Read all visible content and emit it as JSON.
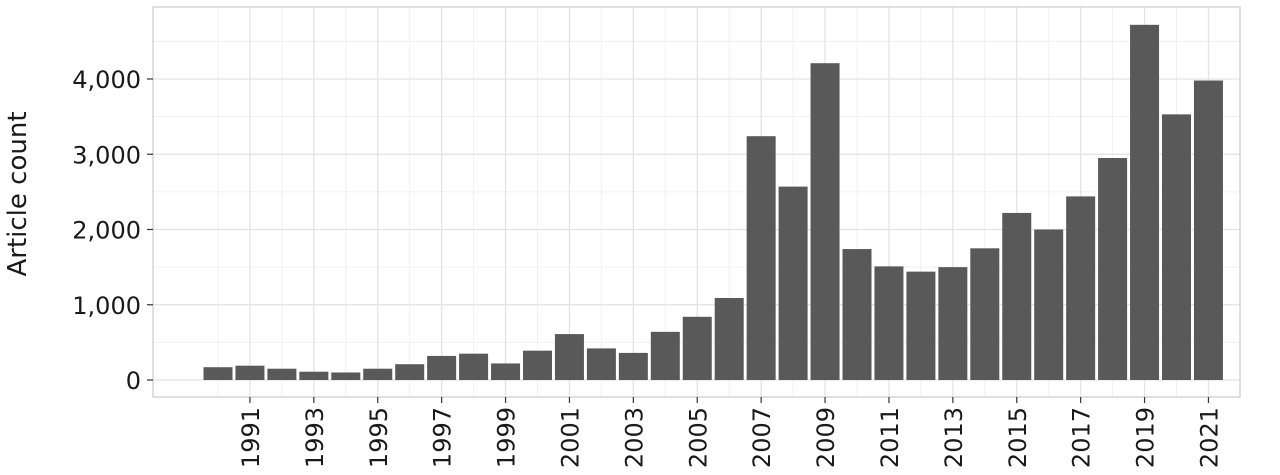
{
  "chart_data": {
    "type": "bar",
    "title": "",
    "xlabel": "",
    "ylabel": "Article count",
    "ylim": [
      0,
      4900
    ],
    "xlim": [
      1989.5,
      2022.3
    ],
    "grid": true,
    "bar_color": "#595959",
    "yticks": [
      0,
      1000,
      2000,
      3000,
      4000
    ],
    "ytick_labels": [
      "0",
      "1,000",
      "2,000",
      "3,000",
      "4,000"
    ],
    "xticks": [
      1991,
      1993,
      1995,
      1997,
      1999,
      2001,
      2003,
      2005,
      2007,
      2009,
      2011,
      2013,
      2015,
      2017,
      2019,
      2021
    ],
    "xtick_labels": [
      "1991",
      "1993",
      "1995",
      "1997",
      "1999",
      "2001",
      "2003",
      "2005",
      "2007",
      "2009",
      "2011",
      "2013",
      "2015",
      "2017",
      "2019",
      "2021"
    ],
    "categories": [
      1990,
      1991,
      1992,
      1993,
      1994,
      1995,
      1996,
      1997,
      1998,
      1999,
      2000,
      2001,
      2002,
      2003,
      2004,
      2005,
      2006,
      2007,
      2008,
      2009,
      2010,
      2011,
      2012,
      2013,
      2014,
      2015,
      2016,
      2017,
      2018,
      2019,
      2020,
      2021
    ],
    "values": [
      170,
      190,
      150,
      110,
      100,
      150,
      210,
      320,
      350,
      220,
      390,
      610,
      420,
      360,
      640,
      840,
      1090,
      3240,
      2570,
      4210,
      1740,
      1510,
      1440,
      1500,
      1750,
      2220,
      2000,
      2440,
      2950,
      4720,
      3530,
      3980
    ]
  }
}
